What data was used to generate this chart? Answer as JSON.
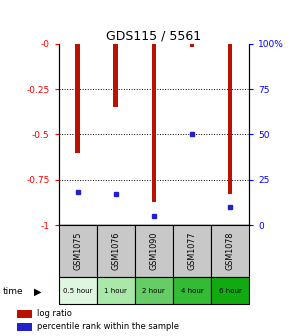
{
  "title": "GDS115 / 5561",
  "samples": [
    "GSM1075",
    "GSM1076",
    "GSM1090",
    "GSM1077",
    "GSM1078"
  ],
  "time_labels": [
    "0.5 hour",
    "1 hour",
    "2 hour",
    "4 hour",
    "6 hour"
  ],
  "log_ratios": [
    -0.6,
    -0.35,
    -0.87,
    -0.02,
    -0.83
  ],
  "percentile_ranks": [
    18,
    17,
    5,
    50,
    10
  ],
  "ylim_left": [
    -1.0,
    0.0
  ],
  "ylim_right": [
    0,
    100
  ],
  "yticks_left": [
    0.0,
    -0.25,
    -0.5,
    -0.75,
    -1.0
  ],
  "ytick_labels_left": [
    "-0",
    "-0.25",
    "-0.5",
    "-0.75",
    "-1"
  ],
  "yticks_right": [
    0,
    25,
    50,
    75,
    100
  ],
  "ytick_labels_right": [
    "0",
    "25",
    "50",
    "75",
    "100%"
  ],
  "bar_color": "#bb1100",
  "marker_color": "#2222cc",
  "time_colors": [
    "#e0f5e0",
    "#aae8aa",
    "#66cc66",
    "#33bb33",
    "#11aa11"
  ],
  "label_bg_color": "#c8c8c8",
  "legend_red": "log ratio",
  "legend_blue": "percentile rank within the sample"
}
